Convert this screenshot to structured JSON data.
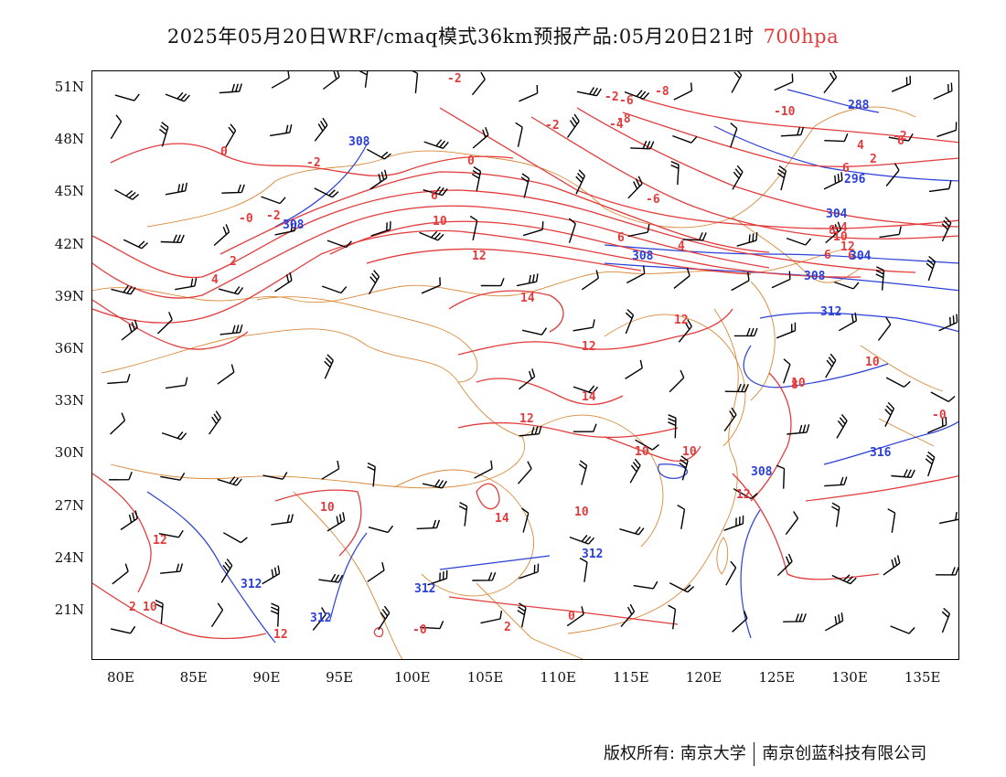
{
  "header": {
    "title": "2025年05月20日WRF/cmaq模式36km预报产品:05月20日21时",
    "level": "700hpa"
  },
  "axes": {
    "y_ticks": [
      "51N",
      "48N",
      "45N",
      "42N",
      "39N",
      "36N",
      "33N",
      "30N",
      "27N",
      "24N",
      "21N"
    ],
    "x_ticks": [
      "80E",
      "85E",
      "90E",
      "95E",
      "100E",
      "105E",
      "110E",
      "115E",
      "120E",
      "125E",
      "130E",
      "135E"
    ]
  },
  "legend_colors": {
    "temperature": "#e23b3b",
    "geopotential": "#2a3fd8",
    "boundary": "#d9893a",
    "wind": "#000000"
  },
  "map": {
    "temperature_labels": [
      "-2",
      "-2",
      "-6",
      "-8",
      "-10",
      "-2",
      "-4",
      "0",
      "-0",
      "-2",
      "0",
      "-2",
      "2",
      "4",
      "6",
      "10",
      "12",
      "14",
      "12",
      "12",
      "14",
      "10",
      "10",
      "12",
      "10",
      "14",
      "10",
      "12",
      "10",
      "10",
      "8",
      "6",
      "12",
      "10",
      "8",
      "6",
      "4",
      "2",
      "6",
      "-8",
      "-6",
      "-4",
      "-2",
      "-0",
      "10",
      "12",
      "-0",
      "2",
      "0",
      "2",
      "4",
      "6",
      "12",
      "6"
    ],
    "height_labels": [
      "288",
      "296",
      "304",
      "304",
      "308",
      "308",
      "308",
      "308",
      "312",
      "312",
      "312",
      "312",
      "312",
      "316",
      "308"
    ]
  },
  "footer": {
    "copyright_left": "版权所有: 南京大学",
    "copyright_right": "南京创蓝科技有限公司"
  }
}
